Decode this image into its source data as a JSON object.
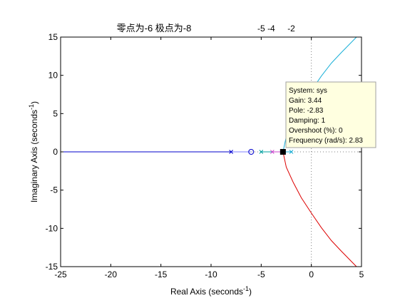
{
  "chart_data": {
    "type": "line",
    "title": "零点为-6  极点为-8",
    "xlabel": "Real Axis (seconds",
    "xlabel_sup": "-1",
    "xlabel_end": ")",
    "ylabel": "Imaginary Axis (seconds",
    "ylabel_sup": "-1",
    "ylabel_end": ")",
    "xlim": [
      -25,
      5
    ],
    "ylim": [
      -15,
      15
    ],
    "x_ticks": [
      -25,
      -20,
      -15,
      -10,
      -5,
      0,
      5
    ],
    "y_ticks": [
      -15,
      -10,
      -5,
      0,
      5,
      10,
      15
    ],
    "damping_grid_labels": [
      {
        "label": "-5",
        "x": -5
      },
      {
        "label": "-4",
        "x": -4
      },
      {
        "label": "-2",
        "x": -2
      }
    ],
    "zeros": [
      {
        "x": -6,
        "y": 0
      }
    ],
    "poles": [
      {
        "x": -8,
        "y": 0
      },
      {
        "x": -5,
        "y": 0
      },
      {
        "x": -3.9,
        "y": 0
      },
      {
        "x": -2,
        "y": 0
      }
    ],
    "series": [
      {
        "color": "#0000cc",
        "x": [
          -25,
          -8
        ],
        "y": [
          0,
          0
        ]
      },
      {
        "color": "#8080ff",
        "x": [
          -8,
          -6
        ],
        "y": [
          0,
          0
        ]
      },
      {
        "color": "#00a0a0",
        "x": [
          -5,
          -3.9
        ],
        "y": [
          0,
          0
        ]
      },
      {
        "color": "#cc44cc",
        "x": [
          -3.9,
          -3.0
        ],
        "y": [
          0,
          0
        ]
      },
      {
        "color": "#1ab0d8",
        "x": [
          -2,
          -2.3,
          -2.6,
          -2.83,
          -2.5,
          -1.8,
          -1.0,
          0,
          1.0,
          2.0,
          3.0,
          4.5
        ],
        "y": [
          0,
          0,
          0,
          0,
          2.0,
          4.0,
          6.0,
          8.0,
          9.9,
          11.6,
          13.0,
          15.0
        ]
      },
      {
        "color": "#dd0000",
        "x": [
          -2.83,
          -2.5,
          -1.8,
          -1.0,
          0,
          1.0,
          2.0,
          3.0,
          4.5
        ],
        "y": [
          0,
          -2.0,
          -4.0,
          -6.0,
          -8.0,
          -9.9,
          -11.6,
          -13.0,
          -15.0
        ]
      }
    ],
    "selected_point": {
      "x": -2.83,
      "y": 0
    },
    "datatip": {
      "lines": [
        "System: sys",
        "Gain: 3.44",
        "Pole: -2.83",
        "Damping: 1",
        "Overshoot (%): 0",
        "Frequency (rad/s): 2.83"
      ]
    },
    "grid": false,
    "legend": "none"
  }
}
